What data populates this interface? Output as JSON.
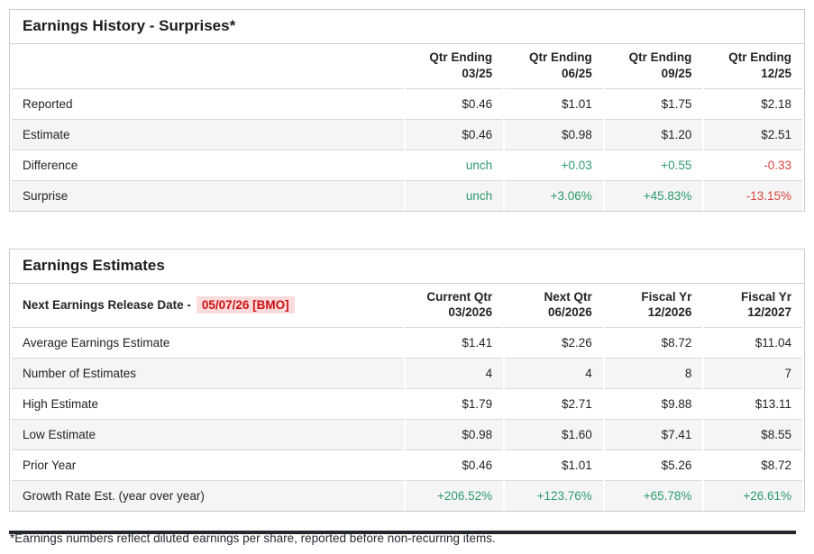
{
  "history": {
    "title": "Earnings History - Surprises*",
    "columns": [
      {
        "l1": "Qtr Ending",
        "l2": "03/25"
      },
      {
        "l1": "Qtr Ending",
        "l2": "06/25"
      },
      {
        "l1": "Qtr Ending",
        "l2": "09/25"
      },
      {
        "l1": "Qtr Ending",
        "l2": "12/25"
      }
    ],
    "rows": [
      {
        "label": "Reported",
        "values": [
          "$0.46",
          "$1.01",
          "$1.75",
          "$2.18"
        ]
      },
      {
        "label": "Estimate",
        "values": [
          "$0.46",
          "$0.98",
          "$1.20",
          "$2.51"
        ]
      },
      {
        "label": "Difference",
        "values": [
          "unch",
          "+0.03",
          "+0.55",
          "-0.33"
        ]
      },
      {
        "label": "Surprise",
        "values": [
          "unch",
          "+3.06%",
          "+45.83%",
          "-13.15%"
        ]
      }
    ]
  },
  "estimates": {
    "title": "Earnings Estimates",
    "release_label": "Next Earnings Release Date -",
    "release_date": "05/07/26 [BMO]",
    "columns": [
      {
        "l1": "Current Qtr",
        "l2": "03/2026"
      },
      {
        "l1": "Next Qtr",
        "l2": "06/2026"
      },
      {
        "l1": "Fiscal Yr",
        "l2": "12/2026"
      },
      {
        "l1": "Fiscal Yr",
        "l2": "12/2027"
      }
    ],
    "rows": [
      {
        "label": "Average Earnings Estimate",
        "values": [
          "$1.41",
          "$2.26",
          "$8.72",
          "$11.04"
        ]
      },
      {
        "label": "Number of Estimates",
        "values": [
          "4",
          "4",
          "8",
          "7"
        ]
      },
      {
        "label": "High Estimate",
        "values": [
          "$1.79",
          "$2.71",
          "$9.88",
          "$13.11"
        ]
      },
      {
        "label": "Low Estimate",
        "values": [
          "$0.98",
          "$1.60",
          "$7.41",
          "$8.55"
        ]
      },
      {
        "label": "Prior Year",
        "values": [
          "$0.46",
          "$1.01",
          "$5.26",
          "$8.72"
        ]
      },
      {
        "label": "Growth Rate Est. (year over year)",
        "values": [
          "+206.52%",
          "+123.76%",
          "+65.78%",
          "+26.61%"
        ]
      }
    ]
  },
  "footnote": "*Earnings numbers reflect diluted earnings per share, reported before non-recurring items.",
  "colors": {
    "up": "#2e9a6d",
    "down": "#d8453f",
    "date_red": "#cc1111",
    "date_bg": "#fbdbdb",
    "stripe": "#f5f5f5",
    "border": "#cccccc",
    "row_border": "#d9d9d9",
    "text": "#232329"
  }
}
